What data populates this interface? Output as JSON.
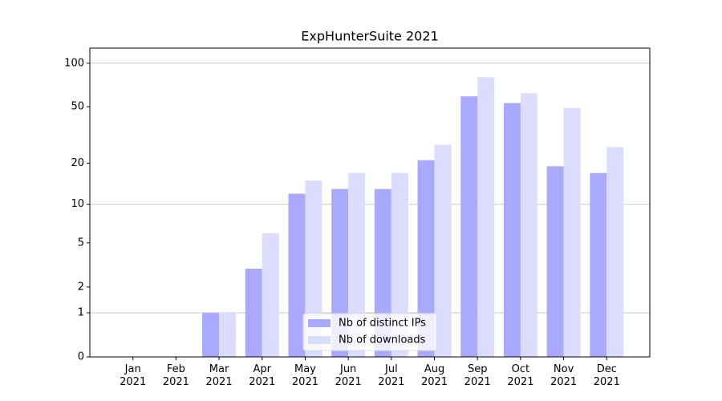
{
  "chart_data": {
    "type": "bar",
    "title": "ExpHunterSuite 2021",
    "categories": [
      "Jan\n2021",
      "Feb\n2021",
      "Mar\n2021",
      "Apr\n2021",
      "May\n2021",
      "Jun\n2021",
      "Jul\n2021",
      "Aug\n2021",
      "Sep\n2021",
      "Oct\n2021",
      "Nov\n2021",
      "Dec\n2021"
    ],
    "series": [
      {
        "name": "Nb of distinct IPs",
        "color": "#a9a9fd",
        "values": [
          0,
          0,
          1,
          3,
          12,
          13,
          13,
          21,
          59,
          53,
          19,
          17
        ]
      },
      {
        "name": "Nb of downloads",
        "color": "#dcdcfe",
        "values": [
          0,
          0,
          1,
          6,
          15,
          17,
          17,
          27,
          80,
          62,
          49,
          26
        ]
      }
    ],
    "y_scale": "log1p",
    "ylim": [
      0,
      127
    ],
    "yticks": [
      0,
      1,
      2,
      5,
      10,
      20,
      50,
      100
    ],
    "grid_values": [
      1,
      10,
      100
    ],
    "legend": "lower center"
  }
}
